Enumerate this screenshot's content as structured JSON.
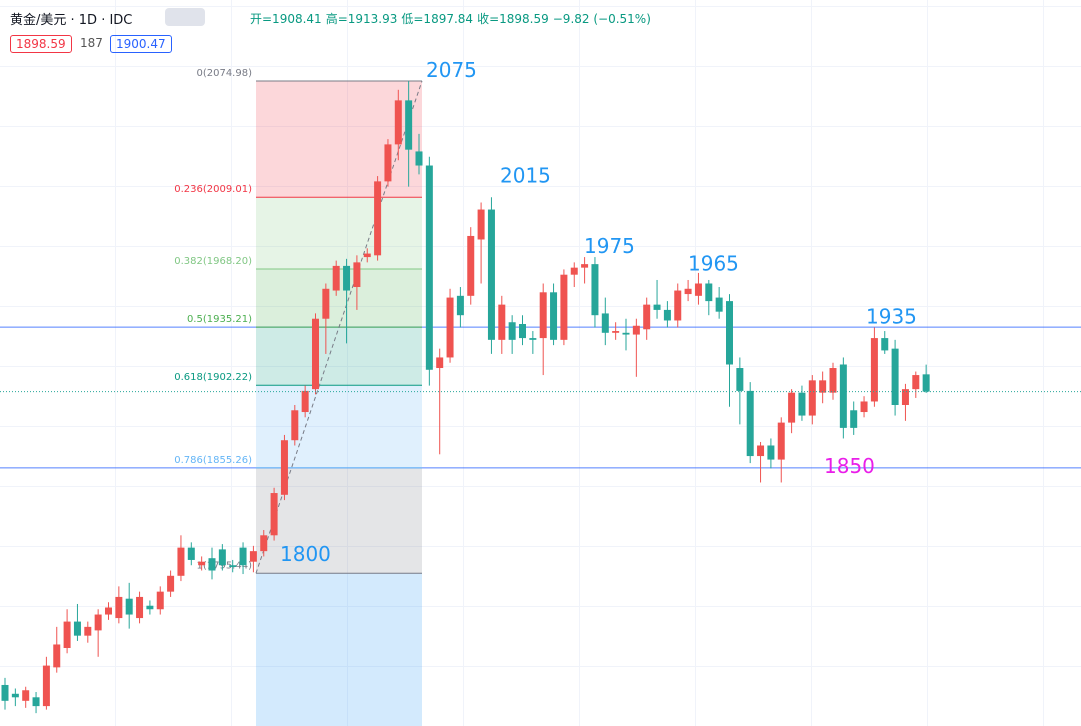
{
  "header": {
    "symbol": "黄金/美元 · 1D · IDC",
    "ohlc": [
      "开=1908.41",
      "高=1913.93",
      "低=1897.84",
      "收=1898.59"
    ],
    "change": "−9.82 (−0.51%)",
    "badges": [
      "1898.59",
      "187",
      "1900.47"
    ]
  },
  "chart_data": {
    "type": "candlestick",
    "ylim": [
      1708.7,
      2121.0
    ],
    "up_color": "#ef5350",
    "down_color": "#26a69a",
    "candles": [
      [
        1732,
        1736,
        1718,
        1723
      ],
      [
        1727,
        1730,
        1720,
        1725
      ],
      [
        1723,
        1731,
        1719,
        1729
      ],
      [
        1725,
        1728,
        1716,
        1720
      ],
      [
        1720,
        1748,
        1718,
        1743
      ],
      [
        1742,
        1765,
        1739,
        1755
      ],
      [
        1753,
        1775,
        1750,
        1768
      ],
      [
        1768,
        1778,
        1757,
        1760
      ],
      [
        1760,
        1768,
        1756,
        1765
      ],
      [
        1763,
        1775,
        1748,
        1772
      ],
      [
        1772,
        1779,
        1769,
        1776
      ],
      [
        1770,
        1788,
        1767,
        1782
      ],
      [
        1781,
        1790,
        1764,
        1772
      ],
      [
        1770,
        1785,
        1767,
        1782
      ],
      [
        1777,
        1780,
        1772,
        1775
      ],
      [
        1775,
        1788,
        1772,
        1785
      ],
      [
        1785,
        1797,
        1782,
        1794
      ],
      [
        1794,
        1817,
        1791,
        1810
      ],
      [
        1810,
        1813,
        1800,
        1803
      ],
      [
        1800,
        1805,
        1797,
        1802
      ],
      [
        1804,
        1810,
        1792,
        1797
      ],
      [
        1809,
        1812,
        1797,
        1800
      ],
      [
        1800,
        1803,
        1796,
        1799
      ],
      [
        1810,
        1813,
        1795,
        1800
      ],
      [
        1802,
        1811,
        1796,
        1808
      ],
      [
        1808,
        1820,
        1805,
        1817
      ],
      [
        1817,
        1844,
        1814,
        1841
      ],
      [
        1840,
        1874,
        1837,
        1871
      ],
      [
        1871,
        1891,
        1868,
        1888
      ],
      [
        1887,
        1902,
        1884,
        1899
      ],
      [
        1900,
        1943,
        1897,
        1940
      ],
      [
        1940,
        1960,
        1920,
        1957
      ],
      [
        1956,
        1973,
        1953,
        1970
      ],
      [
        1970,
        1974,
        1926,
        1956
      ],
      [
        1958,
        1976,
        1945,
        1972
      ],
      [
        1975,
        1980,
        1972,
        1977
      ],
      [
        1976,
        2021,
        1973,
        2018
      ],
      [
        2018,
        2042,
        2015,
        2039
      ],
      [
        2039,
        2070,
        2030,
        2064
      ],
      [
        2064,
        2075,
        2015,
        2036
      ],
      [
        2035,
        2045,
        2022,
        2027
      ],
      [
        2027,
        2032,
        1902,
        1911
      ],
      [
        1912,
        1923,
        1863,
        1918
      ],
      [
        1918,
        1957,
        1915,
        1952
      ],
      [
        1953,
        1958,
        1935,
        1942
      ],
      [
        1953,
        1992,
        1948,
        1987
      ],
      [
        1985,
        2006,
        1960,
        2002
      ],
      [
        2002,
        2009,
        1920,
        1928
      ],
      [
        1928,
        1953,
        1920,
        1948
      ],
      [
        1938,
        1942,
        1920,
        1928
      ],
      [
        1937,
        1942,
        1925,
        1929
      ],
      [
        1929,
        1933,
        1920,
        1928
      ],
      [
        1929,
        1960,
        1908,
        1955
      ],
      [
        1955,
        1960,
        1925,
        1928
      ],
      [
        1928,
        1968,
        1925,
        1965
      ],
      [
        1965,
        1972,
        1958,
        1969
      ],
      [
        1969,
        1975,
        1960,
        1971
      ],
      [
        1971,
        1975,
        1935,
        1942
      ],
      [
        1943,
        1952,
        1925,
        1932
      ],
      [
        1932,
        1938,
        1928,
        1933
      ],
      [
        1932,
        1940,
        1922,
        1931
      ],
      [
        1931,
        1940,
        1907,
        1936
      ],
      [
        1934,
        1952,
        1928,
        1948
      ],
      [
        1948,
        1962,
        1940,
        1945
      ],
      [
        1945,
        1950,
        1935,
        1939
      ],
      [
        1939,
        1960,
        1935,
        1956
      ],
      [
        1954,
        1962,
        1950,
        1957
      ],
      [
        1953,
        1966,
        1948,
        1960
      ],
      [
        1960,
        1962,
        1942,
        1950
      ],
      [
        1952,
        1958,
        1940,
        1944
      ],
      [
        1950,
        1954,
        1890,
        1914
      ],
      [
        1912,
        1918,
        1880,
        1899
      ],
      [
        1899,
        1904,
        1858,
        1862
      ],
      [
        1862,
        1870,
        1847,
        1868
      ],
      [
        1868,
        1872,
        1855,
        1860
      ],
      [
        1860,
        1884,
        1847,
        1881
      ],
      [
        1881,
        1900,
        1875,
        1898
      ],
      [
        1898,
        1902,
        1882,
        1885
      ],
      [
        1885,
        1908,
        1880,
        1905
      ],
      [
        1898,
        1910,
        1892,
        1905
      ],
      [
        1898,
        1915,
        1894,
        1912
      ],
      [
        1914,
        1918,
        1872,
        1878
      ],
      [
        1888,
        1893,
        1874,
        1878
      ],
      [
        1887,
        1896,
        1884,
        1893
      ],
      [
        1893,
        1935,
        1890,
        1929
      ],
      [
        1929,
        1933,
        1920,
        1922
      ],
      [
        1923,
        1928,
        1885,
        1891
      ],
      [
        1891,
        1903,
        1882,
        1900
      ],
      [
        1900,
        1910,
        1895,
        1908
      ],
      [
        1908.41,
        1913.93,
        1897.84,
        1898.59
      ]
    ],
    "fib_levels": [
      {
        "value": 2074.98,
        "label": "0(2074.98)",
        "color": "#787b86"
      },
      {
        "value": 2009.01,
        "label": "0.236(2009.01)",
        "color": "#f23645"
      },
      {
        "value": 1968.2,
        "label": "0.382(1968.20)",
        "color": "#81c784"
      },
      {
        "value": 1935.21,
        "label": "0.5(1935.21)",
        "color": "#4caf50"
      },
      {
        "value": 1902.22,
        "label": "0.618(1902.22)",
        "color": "#089981"
      },
      {
        "value": 1855.26,
        "label": "0.786(1855.26)",
        "color": "#64b5f6"
      },
      {
        "value": 1795.44,
        "label": "1(1795.44)",
        "color": "#787b86"
      }
    ],
    "horizontal_lines": [
      1935.21,
      1855.26
    ],
    "annotations": [
      {
        "text": "2075",
        "value": 2075,
        "color": "#2196f3"
      },
      {
        "text": "2015",
        "value": 2015,
        "color": "#2196f3"
      },
      {
        "text": "1975",
        "value": 1975,
        "color": "#2196f3"
      },
      {
        "text": "1965",
        "value": 1965,
        "color": "#2196f3"
      },
      {
        "text": "1935",
        "value": 1935,
        "color": "#2196f3"
      },
      {
        "text": "1800",
        "value": 1800,
        "color": "#2196f3"
      },
      {
        "text": "1850",
        "value": 1850,
        "color": "#e91ee9"
      }
    ]
  }
}
